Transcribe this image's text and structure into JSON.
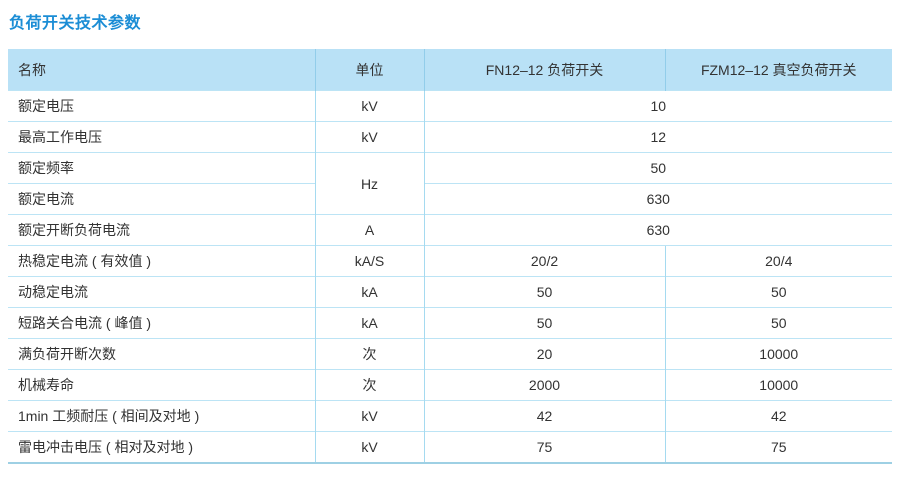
{
  "page": {
    "title": "负荷开关技术参数"
  },
  "table": {
    "columns": {
      "name": "名称",
      "unit": "单位",
      "fn": "FN12–12 负荷开关",
      "fzm": "FZM12–12 真空负荷开关"
    },
    "rows": [
      {
        "name": "额定电压",
        "unit": "kV",
        "value": "10"
      },
      {
        "name": "最高工作电压",
        "unit": "kV",
        "value": "12"
      },
      {
        "name": "额定频率",
        "unit": "Hz",
        "value": "50"
      },
      {
        "name": "额定电流",
        "value": "630"
      },
      {
        "name": "额定开断负荷电流",
        "unit": "A",
        "value": "630"
      },
      {
        "name": "热稳定电流 ( 有效值 )",
        "unit": "kA/S",
        "fn": "20/2",
        "fzm": "20/4"
      },
      {
        "name": "动稳定电流",
        "unit": "kA",
        "fn": "50",
        "fzm": "50"
      },
      {
        "name": "短路关合电流 ( 峰值 )",
        "unit": "kA",
        "fn": "50",
        "fzm": "50"
      },
      {
        "name": "满负荷开断次数",
        "unit": "次",
        "fn": "20",
        "fzm": "10000"
      },
      {
        "name": "机械寿命",
        "unit": "次",
        "fn": "2000",
        "fzm": "10000"
      },
      {
        "name": "1min 工频耐压 ( 相间及对地 )",
        "unit": "kV",
        "fn": "42",
        "fzm": "42"
      },
      {
        "name": "雷电冲击电压 ( 相对及对地 )",
        "unit": "kV",
        "fn": "75",
        "fzm": "75"
      }
    ]
  }
}
